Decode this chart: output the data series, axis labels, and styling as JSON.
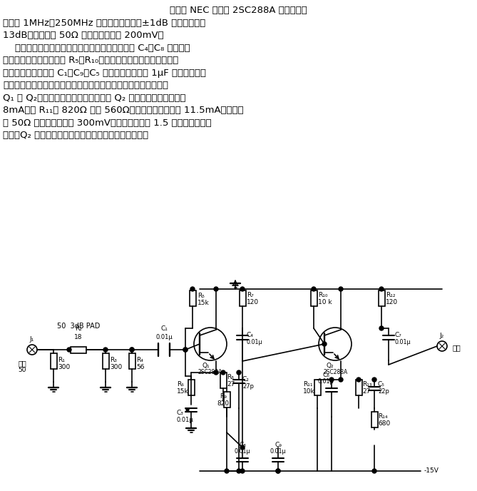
{
  "title_text": [
    "由两只 NEC 出品的 2SC288A 构成，频率",
    "特性在 1MHz～250MHz 的范围内幅值变化±1dB 之内，增益为",
    "13dB，在负载为 50Ω 时最大输出约为 200mV。",
    "    若要改善带宽内频率特性，使其更平坦，可调整 C₄、C₈ 的值，当",
    "低频增益不足时可以减小 R₅、R₁₀的值。若想使频率特性向低频延",
    "伸，可以将耦合电容 C₁、C₉、C₅ 增大，或关联一个 1μF 的钽电容。另",
    "外，延伸频率特性的高频段，可以选择高频特性良好的晶体管代替",
    "Q₁ 和 Q₂。增大输出电压的方法是增大 Q₂ 的集电极电流，原来为",
    "8mA，将 R₁₁由 820Ω 换为 560Ω，则集电极电流变为 11.5mA，在负载",
    "为 50Ω 时输出电压约为 300mV，它是原来值的 1.5 倍，再增加输出",
    "电压，Q₂ 的功率已达极限，必须在输出另加放大电路。"
  ],
  "bg_color": "#ffffff",
  "text_color": "#000000",
  "circuit_color": "#000000"
}
